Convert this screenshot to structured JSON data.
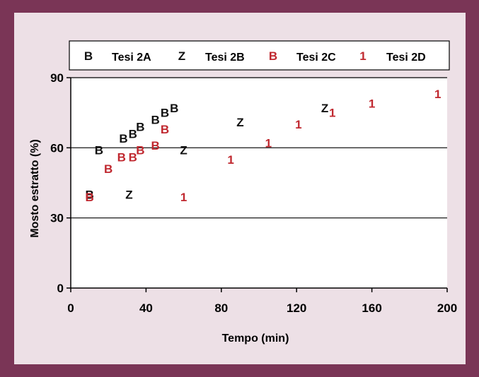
{
  "chart_data": {
    "type": "scatter",
    "xlabel": "Tempo (min)",
    "ylabel": "Mosto estratto (%)",
    "xlim": [
      0,
      200
    ],
    "ylim": [
      0,
      90
    ],
    "xticks": [
      "0",
      "40",
      "80",
      "120",
      "160",
      "200"
    ],
    "yticks": [
      "0",
      "30",
      "60",
      "90"
    ],
    "grid": "horizontal",
    "legend_position": "top",
    "series": [
      {
        "name": "Tesi 2A",
        "marker": "B",
        "color": "#111111",
        "points": [
          {
            "x": 10,
            "y": 40
          },
          {
            "x": 15,
            "y": 59
          },
          {
            "x": 28,
            "y": 64
          },
          {
            "x": 33,
            "y": 66
          },
          {
            "x": 37,
            "y": 69
          },
          {
            "x": 45,
            "y": 72
          },
          {
            "x": 50,
            "y": 75
          },
          {
            "x": 55,
            "y": 77
          }
        ]
      },
      {
        "name": "Tesi 2B",
        "marker": "Z",
        "color": "#111111",
        "points": [
          {
            "x": 31,
            "y": 40
          },
          {
            "x": 60,
            "y": 59
          },
          {
            "x": 90,
            "y": 71
          },
          {
            "x": 135,
            "y": 77
          }
        ]
      },
      {
        "name": "Tesi 2C",
        "marker": "B",
        "color": "#c0282f",
        "points": [
          {
            "x": 10,
            "y": 39
          },
          {
            "x": 20,
            "y": 51
          },
          {
            "x": 27,
            "y": 56
          },
          {
            "x": 33,
            "y": 56
          },
          {
            "x": 37,
            "y": 59
          },
          {
            "x": 45,
            "y": 61
          },
          {
            "x": 50,
            "y": 68
          }
        ]
      },
      {
        "name": "Tesi 2D",
        "marker": "1",
        "color": "#c0282f",
        "points": [
          {
            "x": 60,
            "y": 39
          },
          {
            "x": 85,
            "y": 55
          },
          {
            "x": 105,
            "y": 62
          },
          {
            "x": 121,
            "y": 70
          },
          {
            "x": 139,
            "y": 75
          },
          {
            "x": 160,
            "y": 79
          },
          {
            "x": 195,
            "y": 83
          }
        ]
      }
    ]
  }
}
